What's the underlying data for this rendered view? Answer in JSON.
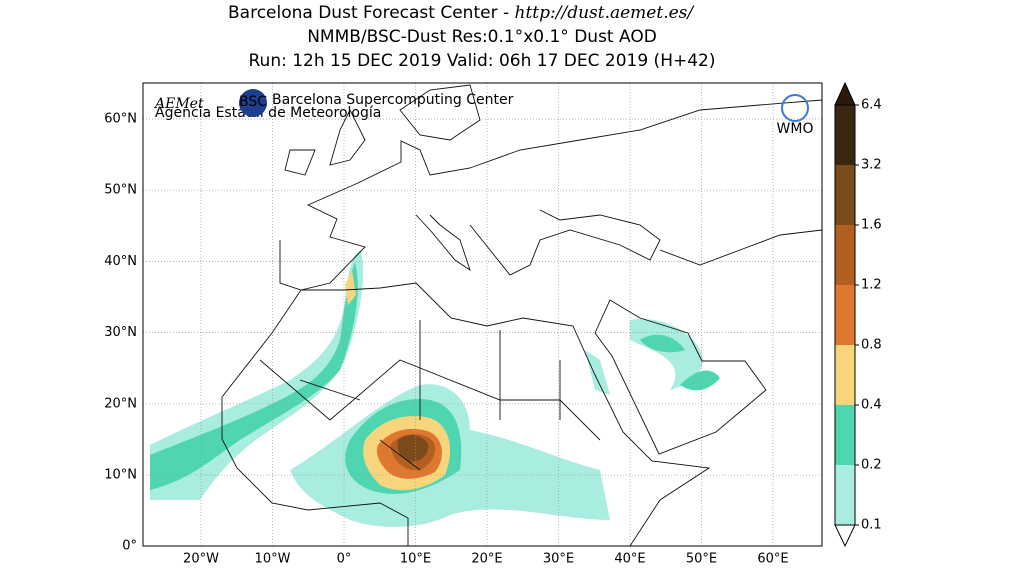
{
  "header": {
    "title": {
      "text": "Barcelona Dust Forecast Center - ",
      "url": "http://dust.aemet.es/"
    },
    "subtitle": "NMMB/BSC-Dust   Res:0.1°x0.1°   Dust AOD",
    "run": "Run: 12h 15 DEC 2019   Valid: 06h 17 DEC 2019 (H+42)"
  },
  "map": {
    "lat_labels": [
      "60°N",
      "50°N",
      "40°N",
      "30°N",
      "20°N",
      "10°N",
      "0°"
    ],
    "lon_labels": [
      "20°W",
      "10°W",
      "0°",
      "10°E",
      "20°E",
      "30°E",
      "40°E",
      "50°E",
      "60°E"
    ]
  },
  "logos": {
    "aemet": "AEMet",
    "aemet_sub": "Agencia Estatal de Meteorología",
    "bsc": "BSC",
    "bsc_name": "Barcelona Supercomputing Center",
    "wmo": "WMO"
  },
  "colorbar": {
    "levels": [
      0.1,
      0.2,
      0.4,
      0.8,
      1.2,
      1.6,
      3.2,
      6.4
    ],
    "colors": [
      "#a9ece0",
      "#4fd6b1",
      "#f6d57c",
      "#e0772f",
      "#b45f22",
      "#7b4b1c",
      "#3b2612"
    ],
    "over_color": "#2a1a0b"
  }
}
